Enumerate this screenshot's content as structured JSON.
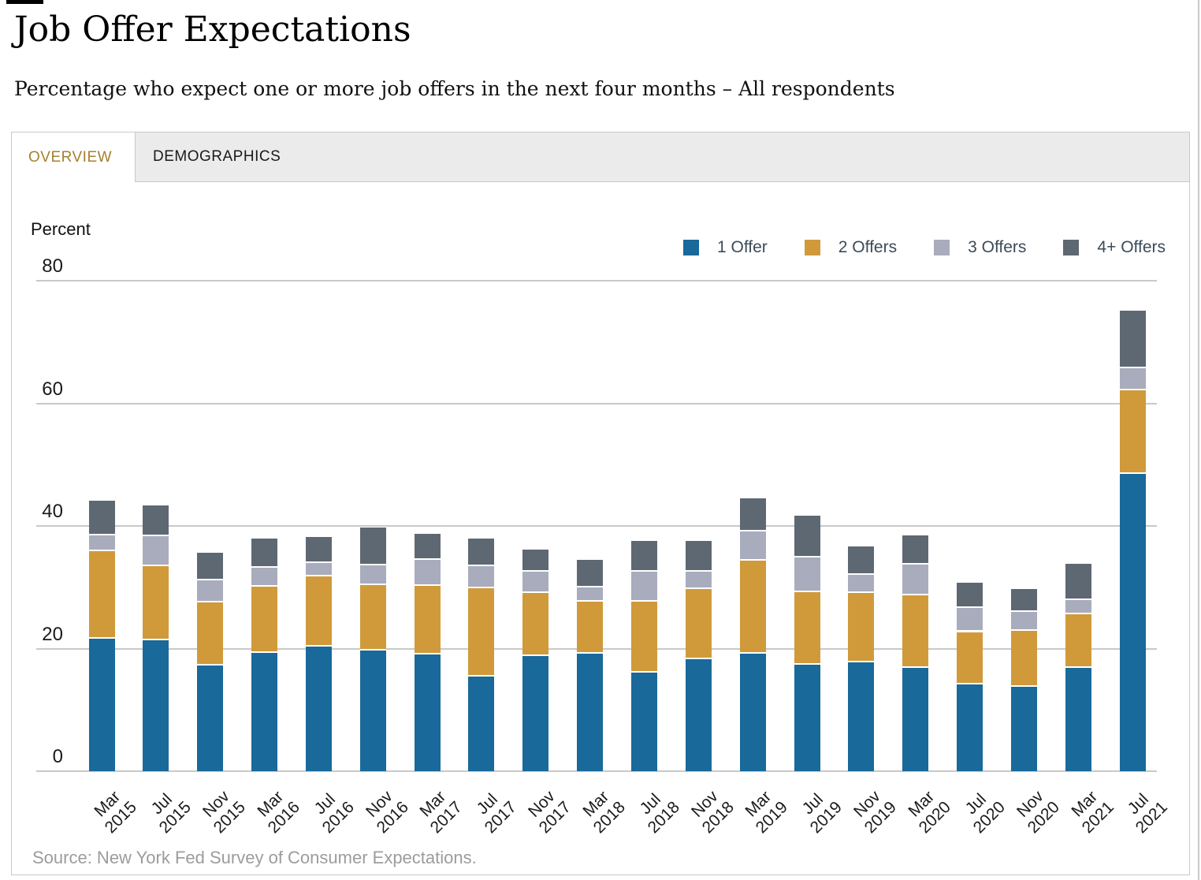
{
  "page": {
    "title": "Job Offer Expectations",
    "subtitle": "Percentage who expect one or more job offers in the next four months – All respondents",
    "source_note": "Source: New York Fed Survey of Consumer Expectations."
  },
  "tabs": [
    {
      "label": "OVERVIEW",
      "active": true
    },
    {
      "label": "DEMOGRAPHICS",
      "active": false
    }
  ],
  "colors": {
    "accent_tab": "#A5812F",
    "grid": "#C9C9C9",
    "legend_text": "#3C4B57",
    "source_text": "#9C9C9C",
    "tab_inactive_bg": "#EBEBEB"
  },
  "chart_data": {
    "type": "bar",
    "stacked": true,
    "title": "Job Offer Expectations",
    "ylabel": "Percent",
    "xlabel": "",
    "ylim": [
      0,
      80
    ],
    "yticks": [
      0,
      20,
      40,
      60,
      80
    ],
    "grid": true,
    "legend_position": "top-right",
    "categories": [
      "Mar 2015",
      "Jul 2015",
      "Nov 2015",
      "Mar 2016",
      "Jul 2016",
      "Nov 2016",
      "Mar 2017",
      "Jul 2017",
      "Nov 2017",
      "Mar 2018",
      "Jul 2018",
      "Nov 2018",
      "Mar 2019",
      "Jul 2019",
      "Nov 2019",
      "Mar 2020",
      "Jul 2020",
      "Nov 2020",
      "Mar 2021",
      "Jul 2021"
    ],
    "series": [
      {
        "name": "1 Offer",
        "color": "#19699B",
        "values": [
          21.6,
          21.3,
          17.2,
          19.3,
          20.3,
          19.7,
          19.0,
          15.4,
          18.8,
          19.2,
          16.1,
          18.2,
          19.2,
          17.3,
          17.7,
          16.8,
          14.2,
          13.7,
          16.8,
          48.5
        ]
      },
      {
        "name": "2 Offers",
        "color": "#D09A3A",
        "values": [
          14.3,
          12.2,
          10.3,
          10.8,
          11.5,
          10.6,
          11.2,
          14.4,
          10.3,
          8.4,
          11.5,
          11.5,
          15.2,
          11.9,
          11.4,
          11.9,
          8.5,
          9.2,
          8.8,
          13.6
        ]
      },
      {
        "name": "3 Offers",
        "color": "#A9ACBC",
        "values": [
          2.5,
          4.8,
          3.6,
          3.1,
          2.1,
          3.3,
          4.3,
          3.6,
          3.4,
          2.4,
          5.0,
          2.9,
          4.7,
          5.7,
          2.9,
          5.0,
          3.9,
          3.1,
          2.3,
          3.6
        ]
      },
      {
        "name": "4+ Offers",
        "color": "#5E6873",
        "values": [
          5.7,
          5.1,
          4.5,
          4.8,
          4.3,
          6.2,
          4.2,
          4.6,
          3.7,
          4.5,
          5.0,
          5.0,
          5.4,
          6.8,
          4.6,
          4.7,
          4.1,
          3.7,
          5.9,
          9.4
        ]
      }
    ]
  }
}
